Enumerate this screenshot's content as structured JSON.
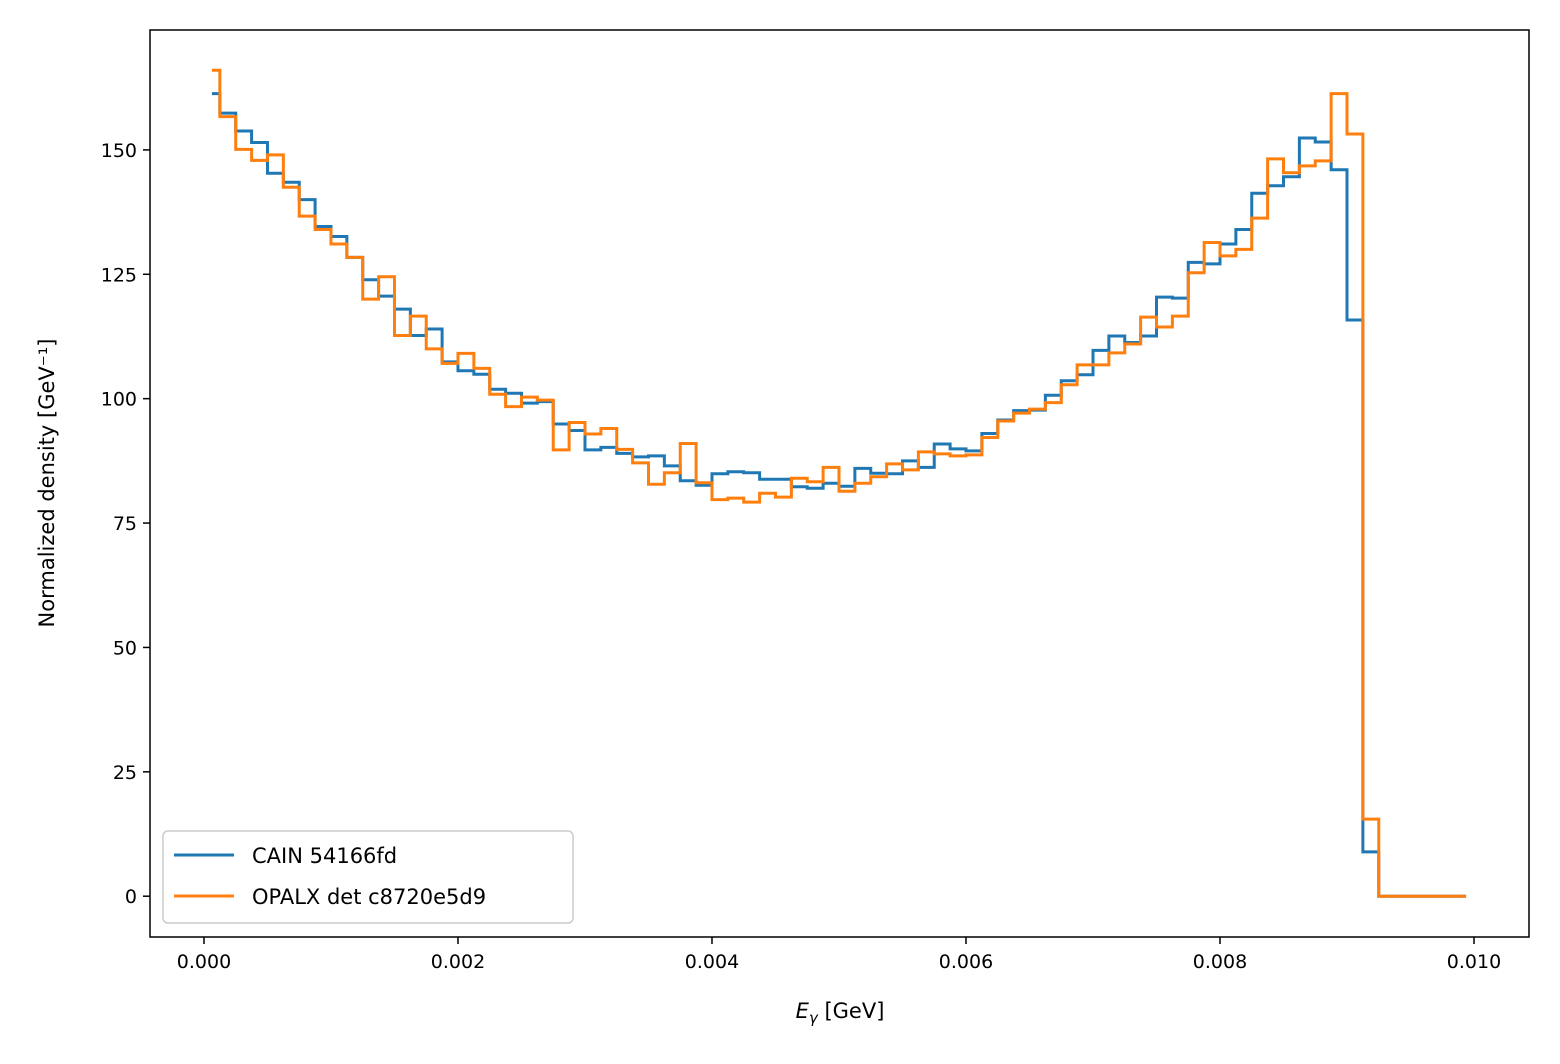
{
  "chart_data": {
    "type": "line",
    "drawstyle": "steps-mid",
    "title": "",
    "xlabel": "E_γ [GeV]",
    "xlabel_main": "E",
    "xlabel_sub": "γ",
    "xlabel_unit": " [GeV]",
    "ylabel": "Normalized density [GeV⁻¹]",
    "xlim": [
      -0.000425,
      0.010433
    ],
    "ylim": [
      -8.2,
      174.1
    ],
    "xticks": [
      0.0,
      0.002,
      0.004,
      0.006,
      0.008,
      0.01
    ],
    "xtick_labels": [
      "0.000",
      "0.002",
      "0.004",
      "0.006",
      "0.008",
      "0.010"
    ],
    "yticks": [
      0,
      25,
      50,
      75,
      100,
      125,
      150
    ],
    "ytick_labels": [
      "0",
      "25",
      "50",
      "75",
      "100",
      "125",
      "150"
    ],
    "grid": false,
    "legend_position": "lower-left",
    "bin_width": 0.000125,
    "x_first_center": 6.25e-05,
    "series": [
      {
        "name": "CAIN 54166fd",
        "color": "#1f77b4",
        "values": [
          161.3,
          157.4,
          153.8,
          151.5,
          145.3,
          143.5,
          140.0,
          134.6,
          132.6,
          128.4,
          123.9,
          120.6,
          118.0,
          112.7,
          114.0,
          107.4,
          105.6,
          104.9,
          101.9,
          101.1,
          99.1,
          99.4,
          94.9,
          93.6,
          89.7,
          90.2,
          89.0,
          88.3,
          88.5,
          86.5,
          83.5,
          82.6,
          84.9,
          85.3,
          85.1,
          83.8,
          83.8,
          82.3,
          82.0,
          83.0,
          82.4,
          86.0,
          85.0,
          84.9,
          87.5,
          86.2,
          90.9,
          89.9,
          89.5,
          93.0,
          95.7,
          97.6,
          97.7,
          100.7,
          103.6,
          104.8,
          109.7,
          112.6,
          111.3,
          112.6,
          120.4,
          120.2,
          127.4,
          127.1,
          131.1,
          134.0,
          141.3,
          142.8,
          144.6,
          152.4,
          151.6,
          146.0,
          115.8,
          8.9,
          0,
          0,
          0,
          0,
          0,
          0
        ]
      },
      {
        "name": "OPALX det c8720e5d9",
        "color": "#ff7f0e",
        "values": [
          166.0,
          156.7,
          150.1,
          147.9,
          149.0,
          142.5,
          136.7,
          134.0,
          131.1,
          128.4,
          120.0,
          124.5,
          112.7,
          116.6,
          110.0,
          107.1,
          109.1,
          106.1,
          100.9,
          98.4,
          100.3,
          99.7,
          89.7,
          95.2,
          92.9,
          94.0,
          89.8,
          87.1,
          82.8,
          85.1,
          91.0,
          83.1,
          79.7,
          80.0,
          79.2,
          81.0,
          80.2,
          84.0,
          83.3,
          86.2,
          81.4,
          83.0,
          84.3,
          86.9,
          85.7,
          89.3,
          88.9,
          88.5,
          88.7,
          92.2,
          95.5,
          97.1,
          97.9,
          99.2,
          102.8,
          106.8,
          106.8,
          109.2,
          111.0,
          116.4,
          114.4,
          116.6,
          125.3,
          131.4,
          128.7,
          130.0,
          136.3,
          148.2,
          145.4,
          146.8,
          147.8,
          161.3,
          153.2,
          15.5,
          0,
          0,
          0,
          0,
          0,
          0
        ]
      }
    ]
  }
}
